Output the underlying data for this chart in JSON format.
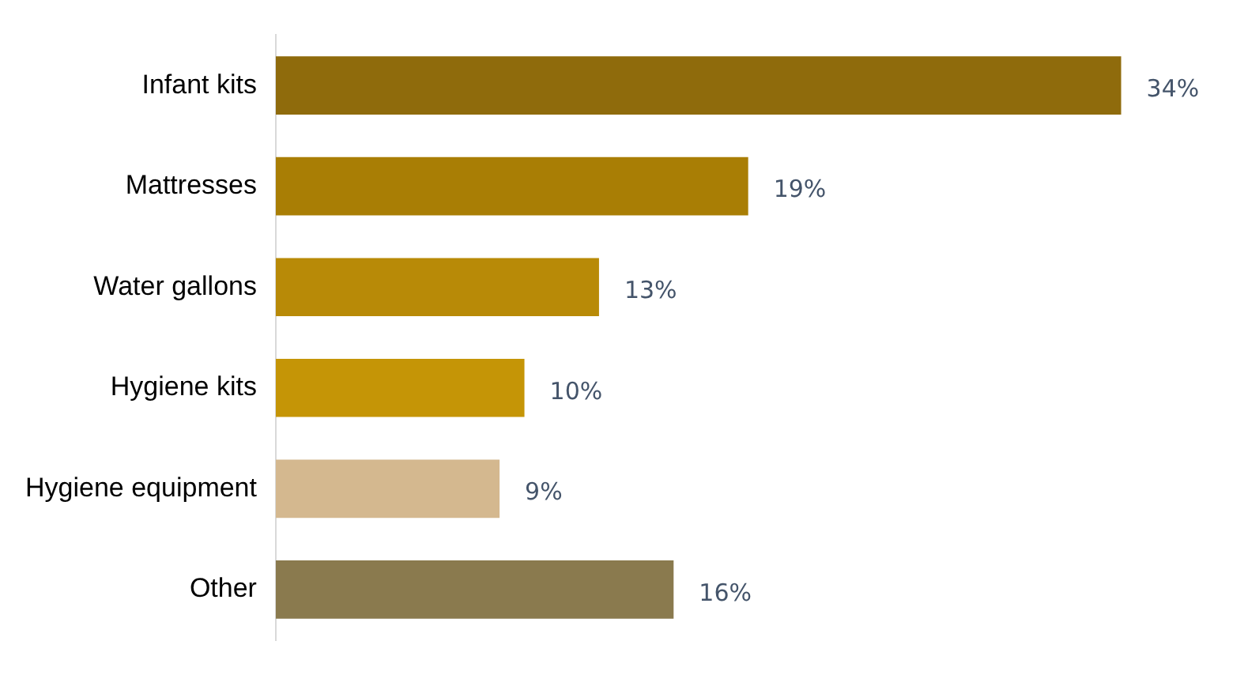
{
  "chart_data": {
    "type": "bar",
    "orientation": "horizontal",
    "categories": [
      "Infant kits",
      "Mattresses",
      "Water gallons",
      "Hygiene kits",
      "Hygiene equipment",
      "Other"
    ],
    "values": [
      34,
      19,
      13,
      10,
      9,
      16
    ],
    "colors": [
      "#8f6b0c",
      "#a97e05",
      "#b88a07",
      "#c59506",
      "#d4b88f",
      "#8a7a4e"
    ],
    "value_labels": [
      "34%",
      "19%",
      "13%",
      "10%",
      "9%",
      "16%"
    ],
    "tick_labels": "y",
    "grid": false,
    "legend": false
  }
}
